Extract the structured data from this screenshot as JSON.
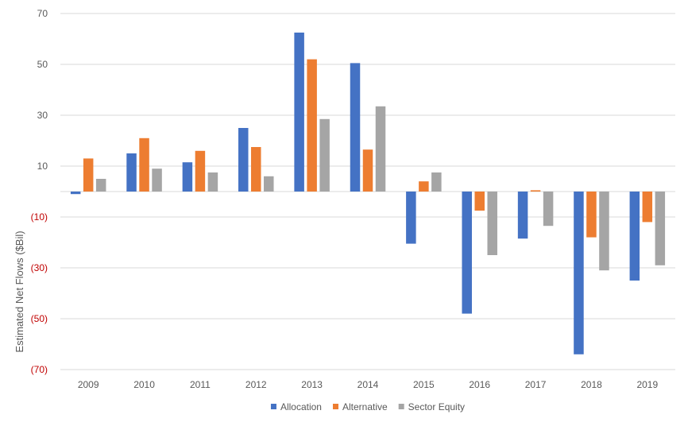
{
  "chart_data": {
    "type": "bar",
    "title": "",
    "xlabel": "",
    "ylabel": "Estimated Net Flows ($Bil)",
    "ylim": [
      -70,
      70
    ],
    "yticks": [
      70,
      50,
      30,
      10,
      -10,
      -30,
      -50,
      -70
    ],
    "ytick_labels": [
      "70",
      "50",
      "30",
      "10",
      "(10)",
      "(30)",
      "(50)",
      "(70)"
    ],
    "negative_tick_color": "#c00000",
    "grid": true,
    "legend_position": "bottom",
    "categories": [
      "2009",
      "2010",
      "2011",
      "2012",
      "2013",
      "2014",
      "2015",
      "2016",
      "2017",
      "2018",
      "2019"
    ],
    "series": [
      {
        "name": "Allocation",
        "color": "#4472c4",
        "values": [
          -1,
          15,
          11.5,
          25,
          62.5,
          50.5,
          -20.5,
          -48,
          -18.5,
          -64,
          -35
        ]
      },
      {
        "name": "Alternative",
        "color": "#ed7d31",
        "values": [
          13,
          21,
          16,
          17.5,
          52,
          16.5,
          4,
          -7.5,
          0.5,
          -18,
          -12
        ]
      },
      {
        "name": "Sector Equity",
        "color": "#a5a5a5",
        "values": [
          5,
          9,
          7.5,
          6,
          28.5,
          33.5,
          7.5,
          -25,
          -13.5,
          -31,
          -29
        ]
      }
    ]
  }
}
